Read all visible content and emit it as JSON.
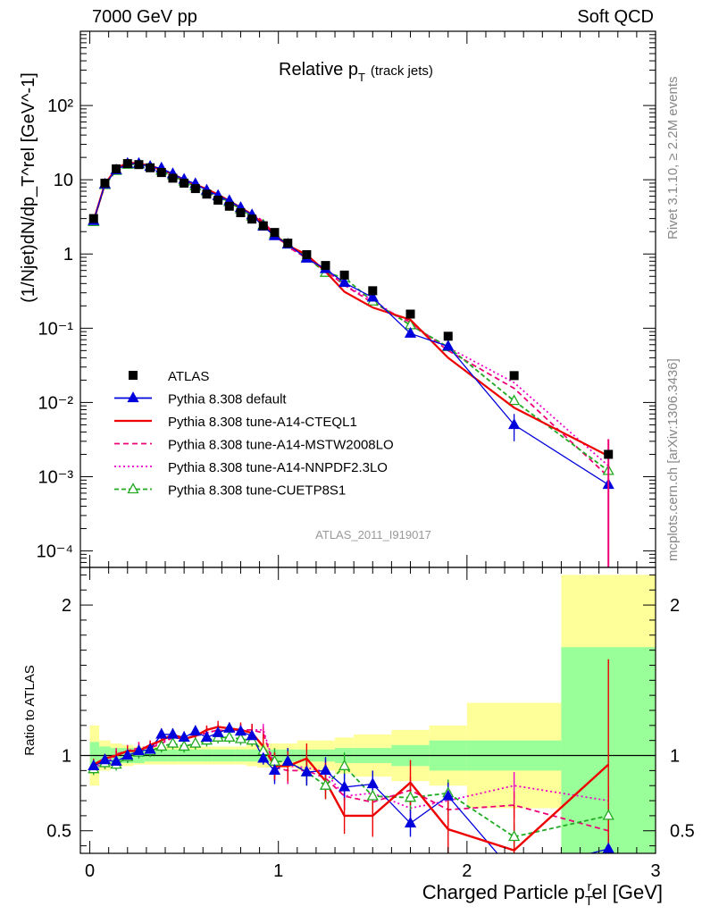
{
  "header": {
    "left": "7000 GeV pp",
    "right": "Soft QCD"
  },
  "side_labels": {
    "top": "Rivet 3.1.10, ≥ 2.2M events",
    "bottom": "mcplots.cern.ch [arXiv:1306.3436]"
  },
  "watermark": "ATLAS_2011_I919017",
  "colors": {
    "atlas": "#000000",
    "default": "#0000dd",
    "a14cteql1": "#ee0000",
    "a14mstw": "#ee0077",
    "a14nnpdf": "#ee00cc",
    "cuetp8s1": "#22aa22",
    "band_inner": "#99ff99",
    "band_outer": "#ffff99"
  },
  "chart_data": [
    {
      "type": "scatter",
      "title": "Relative p_T (track jets)",
      "title_main": "Relative p",
      "title_sub": "T",
      "title_extra": "(track jets)",
      "ylabel": "(1/Njet)dN/dp_T^rel [GeV^-1]",
      "yscale": "log",
      "ylim": [
        6e-05,
        1000
      ],
      "xlim": [
        -0.05,
        3.0
      ],
      "ytick_labels": [
        "10⁻⁴",
        "10⁻³",
        "10⁻²",
        "10⁻¹",
        "1",
        "10",
        "10²"
      ],
      "legend_position": "lower-left",
      "x": [
        0.02,
        0.08,
        0.14,
        0.2,
        0.26,
        0.32,
        0.38,
        0.44,
        0.5,
        0.56,
        0.62,
        0.68,
        0.74,
        0.8,
        0.86,
        0.92,
        0.98,
        1.05,
        1.15,
        1.25,
        1.35,
        1.5,
        1.7,
        1.9,
        2.25,
        2.75
      ],
      "series": [
        {
          "name": "ATLAS",
          "key": "atlas",
          "style": "marker",
          "values": [
            3.0,
            9.0,
            14.0,
            16.5,
            16.0,
            14.5,
            12.5,
            10.5,
            9.0,
            7.6,
            6.4,
            5.3,
            4.4,
            3.6,
            2.95,
            2.4,
            1.95,
            1.4,
            0.98,
            0.7,
            0.52,
            0.32,
            0.155,
            0.078,
            0.023,
            0.002
          ]
        },
        {
          "name": "Pythia 8.308 default",
          "key": "default",
          "style": "solid-tri",
          "values": [
            2.8,
            8.7,
            13.5,
            16.5,
            16.5,
            15.0,
            14.3,
            12.0,
            10.1,
            8.8,
            7.2,
            6.1,
            5.2,
            4.2,
            3.35,
            2.35,
            1.75,
            1.35,
            0.87,
            0.63,
            0.41,
            0.26,
            0.085,
            0.057,
            0.005,
            0.00078
          ],
          "err": [
            0.1,
            0.2,
            0.3,
            0.3,
            0.3,
            0.3,
            0.3,
            0.3,
            0.2,
            0.2,
            0.2,
            0.15,
            0.15,
            0.1,
            0.1,
            0.1,
            0.08,
            0.05,
            0.04,
            0.03,
            0.02,
            0.015,
            0.01,
            0.008,
            0.002,
            0.0008
          ]
        },
        {
          "name": "Pythia 8.308 tune-A14-CTEQL1",
          "key": "a14cteql1",
          "style": "solid",
          "values": [
            2.8,
            8.8,
            14.0,
            17.0,
            16.5,
            15.5,
            13.8,
            12.0,
            10.0,
            8.6,
            7.5,
            6.3,
            5.2,
            4.2,
            3.4,
            2.55,
            1.82,
            1.3,
            0.98,
            0.58,
            0.31,
            0.19,
            0.13,
            0.04,
            0.0085,
            0.0019
          ]
        },
        {
          "name": "Pythia 8.308 tune-A14-MSTW2008LO",
          "key": "a14mstw",
          "style": "dashed",
          "values": [
            2.8,
            8.7,
            14.2,
            17.0,
            16.8,
            15.2,
            13.5,
            11.8,
            10.0,
            8.6,
            7.4,
            6.2,
            5.1,
            4.2,
            3.45,
            2.75,
            1.8,
            1.25,
            0.88,
            0.6,
            0.38,
            0.22,
            0.12,
            0.05,
            0.0155,
            0.001
          ]
        },
        {
          "name": "Pythia 8.308 tune-A14-NNPDF2.3LO",
          "key": "a14nnpdf",
          "style": "dotted",
          "values": [
            2.8,
            8.6,
            14.0,
            17.0,
            16.8,
            15.4,
            13.6,
            11.8,
            10.0,
            8.6,
            7.4,
            6.2,
            5.1,
            4.2,
            3.45,
            2.8,
            1.8,
            1.3,
            0.9,
            0.62,
            0.38,
            0.24,
            0.11,
            0.055,
            0.0185,
            0.0014
          ]
        },
        {
          "name": "Pythia 8.308 tune-CUETP8S1",
          "key": "cuetp8s1",
          "style": "dashed-tri",
          "values": [
            2.7,
            8.5,
            13.2,
            16.0,
            16.2,
            15.0,
            13.3,
            11.5,
            9.5,
            8.2,
            7.0,
            6.0,
            5.0,
            4.0,
            3.2,
            2.45,
            1.85,
            1.35,
            0.9,
            0.56,
            0.48,
            0.23,
            0.11,
            0.056,
            0.0105,
            0.0012
          ]
        }
      ]
    },
    {
      "type": "line",
      "xlabel": "Charged Particle p_T^rel [GeV]",
      "xlabel_main": "Charged Particle p",
      "xlabel_sub": "T",
      "xlabel_sup": "r",
      "xlabel_tail": "el [GeV]",
      "ylabel": "Ratio to ATLAS",
      "ylim": [
        0.35,
        2.25
      ],
      "xlim": [
        -0.05,
        3.0
      ],
      "xtick_labels": [
        "0",
        "1",
        "2",
        "3"
      ],
      "ytick_labels": [
        "0.5",
        "1",
        "2"
      ],
      "reference_line": 1,
      "bands": {
        "edges": [
          0.0,
          0.05,
          0.11,
          0.17,
          0.23,
          0.29,
          0.35,
          0.41,
          0.47,
          0.53,
          0.59,
          0.65,
          0.71,
          0.77,
          0.83,
          0.89,
          0.95,
          1.01,
          1.1,
          1.2,
          1.3,
          1.4,
          1.6,
          1.8,
          2.0,
          2.5,
          3.0
        ],
        "inner": [
          0.09,
          0.06,
          0.05,
          0.05,
          0.05,
          0.04,
          0.04,
          0.04,
          0.04,
          0.04,
          0.04,
          0.04,
          0.04,
          0.04,
          0.04,
          0.04,
          0.04,
          0.04,
          0.04,
          0.04,
          0.05,
          0.05,
          0.07,
          0.1,
          0.1,
          0.72
        ],
        "outer": [
          0.2,
          0.1,
          0.08,
          0.07,
          0.06,
          0.06,
          0.06,
          0.06,
          0.06,
          0.06,
          0.06,
          0.06,
          0.06,
          0.06,
          0.07,
          0.08,
          0.08,
          0.08,
          0.1,
          0.1,
          0.12,
          0.14,
          0.17,
          0.2,
          0.35,
          1.2
        ]
      },
      "x": [
        0.02,
        0.08,
        0.14,
        0.2,
        0.26,
        0.32,
        0.38,
        0.44,
        0.5,
        0.56,
        0.62,
        0.68,
        0.74,
        0.8,
        0.86,
        0.92,
        0.98,
        1.05,
        1.15,
        1.25,
        1.35,
        1.5,
        1.7,
        1.9,
        2.25,
        2.75
      ],
      "series": [
        {
          "name": "Pythia 8.308 default",
          "key": "default",
          "style": "solid-tri",
          "values": [
            0.93,
            0.97,
            0.96,
            1.0,
            1.03,
            1.04,
            1.14,
            1.14,
            1.12,
            1.16,
            1.12,
            1.15,
            1.18,
            1.16,
            1.13,
            0.98,
            0.9,
            0.96,
            0.89,
            0.9,
            0.79,
            0.81,
            0.55,
            0.73,
            0.22,
            0.38
          ]
        },
        {
          "name": "Pythia 8.308 tune-A14-CTEQL1",
          "key": "a14cteql1",
          "style": "solid",
          "values": [
            0.94,
            0.98,
            1.0,
            1.03,
            1.03,
            1.07,
            1.1,
            1.14,
            1.11,
            1.13,
            1.17,
            1.19,
            1.18,
            1.17,
            1.15,
            1.06,
            0.93,
            0.93,
            0.98,
            0.83,
            0.6,
            0.6,
            0.82,
            0.51,
            0.37,
            0.94
          ],
          "err": [
            0.04,
            0.03,
            0.03,
            0.03,
            0.03,
            0.03,
            0.03,
            0.03,
            0.03,
            0.03,
            0.03,
            0.04,
            0.04,
            0.05,
            0.06,
            0.08,
            0.09,
            0.1,
            0.1,
            0.12,
            0.12,
            0.14,
            0.15,
            0.2,
            0.3,
            0.7
          ]
        },
        {
          "name": "Pythia 8.308 tune-A14-MSTW2008LO",
          "key": "a14mstw",
          "style": "dashed",
          "values": [
            0.93,
            0.97,
            1.01,
            1.03,
            1.05,
            1.05,
            1.08,
            1.12,
            1.11,
            1.13,
            1.15,
            1.17,
            1.16,
            1.17,
            1.17,
            1.15,
            0.92,
            0.9,
            0.9,
            0.85,
            0.73,
            0.69,
            0.77,
            0.64,
            0.67,
            0.5
          ]
        },
        {
          "name": "Pythia 8.308 tune-A14-NNPDF2.3LO",
          "key": "a14nnpdf",
          "style": "dotted",
          "values": [
            0.92,
            0.95,
            1.0,
            1.03,
            1.05,
            1.06,
            1.09,
            1.12,
            1.11,
            1.13,
            1.15,
            1.17,
            1.16,
            1.17,
            1.17,
            1.17,
            0.93,
            0.93,
            0.92,
            0.89,
            0.73,
            0.75,
            0.65,
            0.7,
            0.8,
            0.7
          ]
        },
        {
          "name": "Pythia 8.308 tune-CUETP8S1",
          "key": "cuetp8s1",
          "style": "dashed-tri",
          "values": [
            0.91,
            0.95,
            0.94,
            0.99,
            1.02,
            1.03,
            1.06,
            1.08,
            1.06,
            1.08,
            1.1,
            1.12,
            1.12,
            1.11,
            1.1,
            1.03,
            0.96,
            0.96,
            0.89,
            0.8,
            0.93,
            0.73,
            0.72,
            0.75,
            0.46,
            0.6
          ]
        }
      ]
    }
  ]
}
